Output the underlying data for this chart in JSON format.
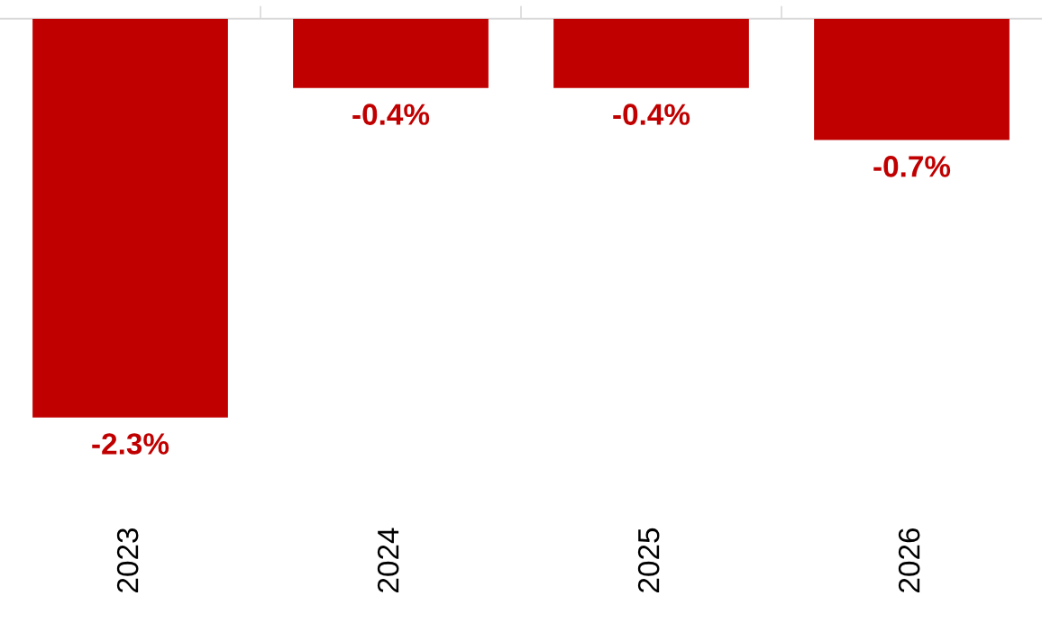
{
  "chart_data": {
    "type": "bar",
    "categories": [
      "2023",
      "2024",
      "2025",
      "2026"
    ],
    "values": [
      -2.3,
      -0.4,
      -0.4,
      -0.7
    ],
    "value_labels": [
      "-2.3%",
      "-0.4%",
      "-0.4%",
      "-0.7%"
    ],
    "color": "#c00000",
    "tick_labels": "x",
    "grid": false,
    "legend": false
  }
}
